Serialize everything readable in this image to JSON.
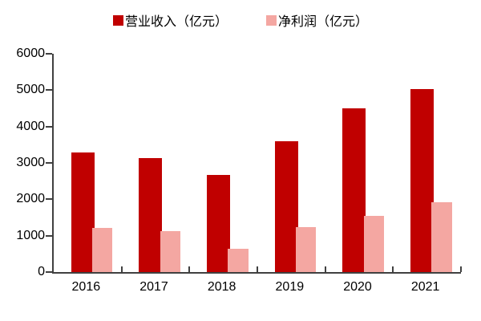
{
  "chart_data": {
    "type": "bar",
    "title": "",
    "categories": [
      "2016",
      "2017",
      "2018",
      "2019",
      "2020",
      "2021"
    ],
    "series": [
      {
        "name": "营业收入（亿元）",
        "color": "#c00000",
        "values": [
          3290,
          3130,
          2670,
          3600,
          4500,
          5030
        ]
      },
      {
        "name": "净利润（亿元）",
        "color": "#f4a7a2",
        "values": [
          1220,
          1120,
          650,
          1230,
          1550,
          1910
        ]
      }
    ],
    "xlabel": "",
    "ylabel": "",
    "ylim": [
      0,
      6000
    ],
    "ytick_interval": 1000,
    "grid": false,
    "legend_position": "top",
    "axis_color": "#404040",
    "text_color": "#000000",
    "background_color": "#ffffff"
  }
}
